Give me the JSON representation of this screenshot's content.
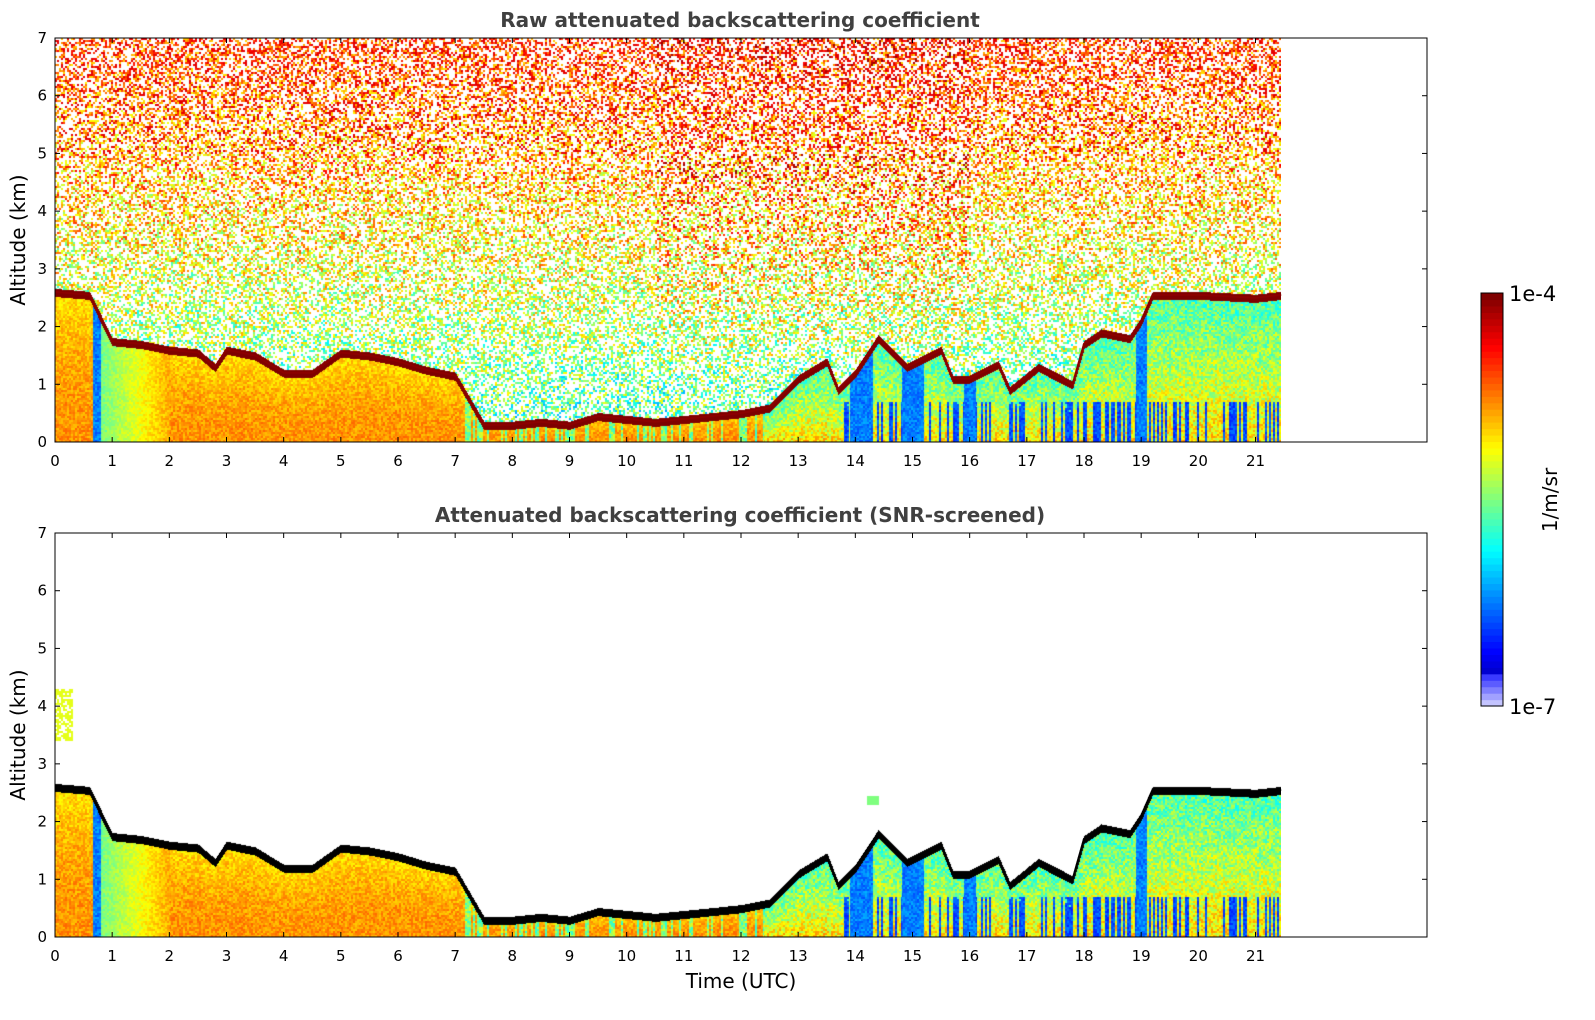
{
  "chart_data": [
    {
      "type": "heatmap",
      "title": "Raw attenuated backscattering coefficient",
      "xlabel": "",
      "ylabel": "Altitude (km)",
      "xlim": [
        0,
        24
      ],
      "ylim": [
        0,
        7
      ],
      "xticks": [
        "0",
        "1",
        "2",
        "3",
        "4",
        "5",
        "6",
        "7",
        "8",
        "9",
        "10",
        "11",
        "12",
        "13",
        "14",
        "15",
        "16",
        "17",
        "18",
        "19",
        "20",
        "21"
      ],
      "yticks": [
        "0",
        "1",
        "2",
        "3",
        "4",
        "5",
        "6",
        "7"
      ],
      "data_extent_hours": [
        0,
        21.45
      ],
      "screened": false,
      "cloud_base_km": [
        [
          0,
          2.6
        ],
        [
          0.6,
          2.55
        ],
        [
          1,
          1.75
        ],
        [
          1.5,
          1.7
        ],
        [
          2,
          1.6
        ],
        [
          2.5,
          1.55
        ],
        [
          2.8,
          1.3
        ],
        [
          3,
          1.6
        ],
        [
          3.5,
          1.5
        ],
        [
          4,
          1.2
        ],
        [
          4.5,
          1.2
        ],
        [
          5,
          1.55
        ],
        [
          5.5,
          1.5
        ],
        [
          6,
          1.4
        ],
        [
          6.5,
          1.25
        ],
        [
          7,
          1.15
        ],
        [
          7.5,
          0.3
        ],
        [
          8,
          0.3
        ],
        [
          8.5,
          0.35
        ],
        [
          9,
          0.3
        ],
        [
          9.5,
          0.45
        ],
        [
          10,
          0.4
        ],
        [
          10.5,
          0.35
        ],
        [
          11,
          0.4
        ],
        [
          11.5,
          0.45
        ],
        [
          12,
          0.5
        ],
        [
          12.5,
          0.6
        ],
        [
          13,
          1.1
        ],
        [
          13.5,
          1.4
        ],
        [
          13.7,
          0.9
        ],
        [
          14,
          1.2
        ],
        [
          14.4,
          1.8
        ],
        [
          14.9,
          1.3
        ],
        [
          15.5,
          1.6
        ],
        [
          15.7,
          1.1
        ],
        [
          16,
          1.1
        ],
        [
          16.5,
          1.35
        ],
        [
          16.7,
          0.9
        ],
        [
          17.2,
          1.3
        ],
        [
          17.8,
          1.0
        ],
        [
          18,
          1.7
        ],
        [
          18.3,
          1.9
        ],
        [
          18.8,
          1.8
        ],
        [
          19,
          2.1
        ],
        [
          19.2,
          2.55
        ],
        [
          20,
          2.55
        ],
        [
          21,
          2.5
        ],
        [
          21.45,
          2.55
        ]
      ],
      "colorbar": {
        "label": "1/m/sr",
        "min_label": "1e-7",
        "max_label": "1e-4",
        "scale": "log"
      }
    },
    {
      "type": "heatmap",
      "title": "Attenuated backscattering coefficient (SNR-screened)",
      "xlabel": "Time (UTC)",
      "ylabel": "Altitude (km)",
      "xlim": [
        0,
        24
      ],
      "ylim": [
        0,
        7
      ],
      "xticks": [
        "0",
        "1",
        "2",
        "3",
        "4",
        "5",
        "6",
        "7",
        "8",
        "9",
        "10",
        "11",
        "12",
        "13",
        "14",
        "15",
        "16",
        "17",
        "18",
        "19",
        "20",
        "21"
      ],
      "yticks": [
        "0",
        "1",
        "2",
        "3",
        "4",
        "5",
        "6",
        "7"
      ],
      "data_extent_hours": [
        0,
        21.45
      ],
      "screened": true,
      "colorbar": {
        "label": "1/m/sr",
        "min_label": "1e-7",
        "max_label": "1e-4",
        "scale": "log"
      }
    }
  ],
  "colors": {
    "jet": [
      "#00007f",
      "#0000ff",
      "#007fff",
      "#00ffff",
      "#7fff7f",
      "#ffff00",
      "#ff7f00",
      "#ff0000",
      "#7f0000"
    ],
    "cloud_marker_raw": "#8b0000",
    "cloud_marker_screened": "#000000",
    "title": "#404040"
  }
}
